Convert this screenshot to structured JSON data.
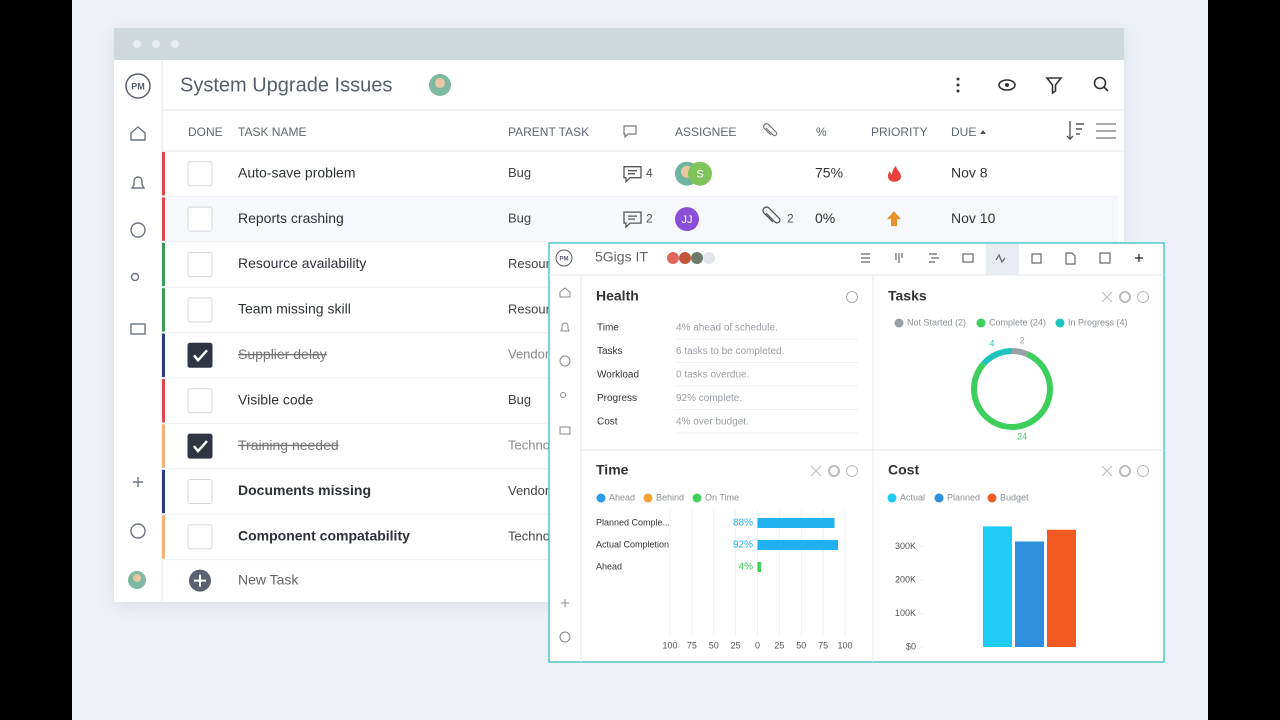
{
  "window": {
    "logo": "PM",
    "title": "System Upgrade Issues"
  },
  "table": {
    "headers": [
      "DONE",
      "TASK NAME",
      "PARENT TASK",
      "ASSIGNEE",
      "%",
      "PRIORITY",
      "DUE"
    ],
    "rows": [
      {
        "name": "Auto-save problem",
        "parent": "Bug",
        "comments": "4",
        "photo": true,
        "assignee": "S",
        "percent": "75%",
        "priority": "urgent",
        "due": "Nov 8",
        "done": false,
        "bold": false,
        "color": "#e0474c"
      },
      {
        "name": "Reports crashing",
        "parent": "Bug",
        "comments": "2",
        "assignee": "JJ",
        "attachments": "2",
        "percent": "0%",
        "priority": "high",
        "due": "Nov 10",
        "done": false,
        "bold": false,
        "color": "#e0474c"
      },
      {
        "name": "Resource availability",
        "parent": "Resour",
        "done": false,
        "bold": false,
        "color": "#3a9d5a"
      },
      {
        "name": "Team missing skill",
        "parent": "Resour",
        "done": false,
        "bold": false,
        "color": "#3a9d5a"
      },
      {
        "name": "Supplier delay",
        "parent": "Vendor",
        "done": true,
        "bold": false,
        "color": "#2c3a8c"
      },
      {
        "name": "Visible code",
        "parent": "Bug",
        "done": false,
        "bold": false,
        "color": "#e0474c"
      },
      {
        "name": "Training needed",
        "parent": "Techno",
        "done": true,
        "bold": false,
        "color": "#f2b27a"
      },
      {
        "name": "Documents missing",
        "parent": "Vendor",
        "done": false,
        "bold": true,
        "color": "#2c3a8c"
      },
      {
        "name": "Component compatability",
        "parent": "Techno",
        "done": false,
        "bold": true,
        "color": "#f2b27a"
      }
    ],
    "new_task": "New Task"
  },
  "dashboard": {
    "logo": "PM",
    "title": "5Gigs IT",
    "health": {
      "title": "Health",
      "rows": [
        [
          "Time",
          "4% ahead of schedule."
        ],
        [
          "Tasks",
          "6 tasks to be completed."
        ],
        [
          "Workload",
          "0 tasks overdue."
        ],
        [
          "Progress",
          "92% complete."
        ],
        [
          "Cost",
          "4% over budget."
        ]
      ]
    }
  },
  "chart_data": [
    {
      "type": "donut",
      "title": "Tasks",
      "categories": [
        "Not Started (2)",
        "Complete (24)",
        "In Progress (4)"
      ],
      "values": [
        2,
        24,
        4
      ],
      "colors": [
        "#9aa0a6",
        "#3ccf5c",
        "#1fc4c0"
      ]
    },
    {
      "type": "bar",
      "orientation": "horizontal",
      "title": "Time",
      "legend": [
        {
          "name": "Ahead",
          "color": "#2b9be8"
        },
        {
          "name": "Behind",
          "color": "#f5a030"
        },
        {
          "name": "On Time",
          "color": "#3ccf5c"
        }
      ],
      "categories": [
        "Planned Comple...",
        "Actual Completion",
        "Ahead"
      ],
      "values": [
        88,
        92,
        4
      ],
      "value_labels": [
        "88%",
        "92%",
        "4%"
      ],
      "colors": [
        "#21b0f2",
        "#21b0f2",
        "#3ccf5c"
      ],
      "xlim": [
        -100,
        100
      ],
      "xticks": [
        {
          "value": -100,
          "label": "100"
        },
        {
          "value": -75,
          "label": "75"
        },
        {
          "value": -50,
          "label": "50"
        },
        {
          "value": -25,
          "label": "25"
        },
        0,
        25,
        50,
        75,
        100
      ]
    },
    {
      "type": "bar",
      "title": "Cost",
      "series": [
        {
          "name": "Actual",
          "color": "#1ecbf2",
          "values": [
            360000
          ]
        },
        {
          "name": "Planned",
          "color": "#2e8fe0",
          "values": [
            315000
          ]
        },
        {
          "name": "Budget",
          "color": "#f25a24",
          "values": [
            350000
          ]
        }
      ],
      "ylim": [
        0,
        400000
      ],
      "yticks": [
        {
          "value": 0,
          "label": "$0"
        },
        {
          "value": 100000,
          "label": "100K"
        },
        {
          "value": 200000,
          "label": "200K"
        },
        {
          "value": 300000,
          "label": "300K"
        }
      ]
    }
  ]
}
